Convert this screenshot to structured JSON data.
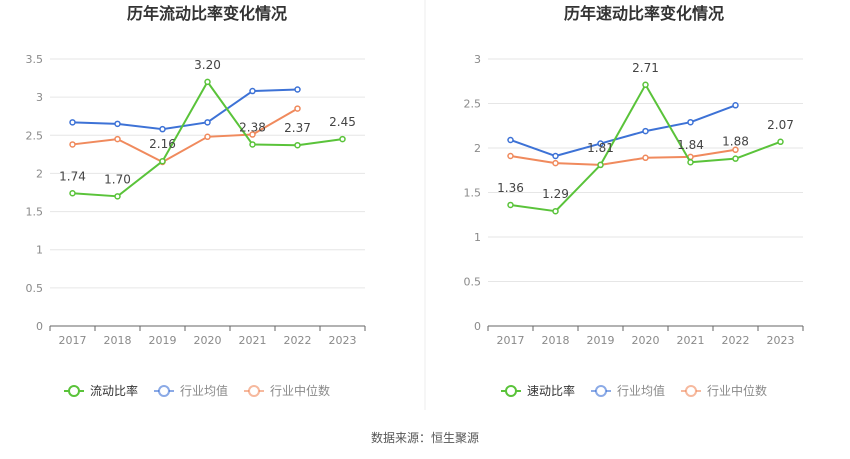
{
  "chart_data": [
    {
      "type": "line",
      "title": "历年流动比率变化情况",
      "categories": [
        "2017",
        "2018",
        "2019",
        "2020",
        "2021",
        "2022",
        "2023"
      ],
      "ylim": [
        0,
        3.5
      ],
      "yticks": [
        "0",
        "0.5",
        "1",
        "1.5",
        "2",
        "2.5",
        "3",
        "3.5"
      ],
      "grid": true,
      "legend_position": "bottom",
      "series": [
        {
          "name": "流动比率",
          "color": "#5ac33a",
          "values": [
            1.74,
            1.7,
            2.16,
            3.2,
            2.38,
            2.37,
            2.45
          ],
          "labels": [
            "1.74",
            "1.70",
            "2.16",
            "3.20",
            "2.38",
            "2.37",
            "2.45"
          ]
        },
        {
          "name": "行业均值",
          "color": "#3d72d6",
          "values": [
            2.67,
            2.65,
            2.58,
            2.67,
            3.08,
            3.1,
            null
          ]
        },
        {
          "name": "行业中位数",
          "color": "#f08a5d",
          "values": [
            2.38,
            2.45,
            2.15,
            2.48,
            2.51,
            2.85,
            null
          ]
        }
      ]
    },
    {
      "type": "line",
      "title": "历年速动比率变化情况",
      "categories": [
        "2017",
        "2018",
        "2019",
        "2020",
        "2021",
        "2022",
        "2023"
      ],
      "ylim": [
        0,
        3
      ],
      "yticks": [
        "0",
        "0.5",
        "1",
        "1.5",
        "2",
        "2.5",
        "3"
      ],
      "grid": true,
      "legend_position": "bottom",
      "series": [
        {
          "name": "速动比率",
          "color": "#5ac33a",
          "values": [
            1.36,
            1.29,
            1.81,
            2.71,
            1.84,
            1.88,
            2.07
          ],
          "labels": [
            "1.36",
            "1.29",
            "1.81",
            "2.71",
            "1.84",
            "1.88",
            "2.07"
          ]
        },
        {
          "name": "行业均值",
          "color": "#3d72d6",
          "values": [
            2.09,
            1.91,
            2.05,
            2.19,
            2.29,
            2.48,
            null
          ]
        },
        {
          "name": "行业中位数",
          "color": "#f08a5d",
          "values": [
            1.91,
            1.83,
            1.81,
            1.89,
            1.9,
            1.98,
            null
          ]
        }
      ]
    }
  ],
  "footer": {
    "source": "数据来源：恒生聚源"
  }
}
